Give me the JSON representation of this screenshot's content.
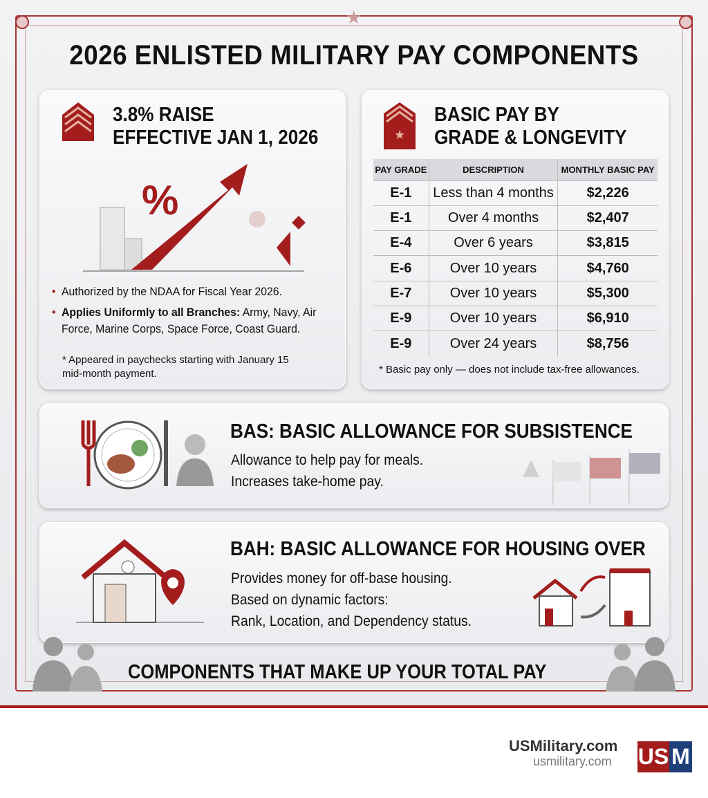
{
  "title": "2026 ENLISTED MILITARY PAY COMPONENTS",
  "raise": {
    "heading_line1": "3.8% RAISE",
    "heading_line2": "EFFECTIVE JAN 1, 2026",
    "bullets": [
      {
        "bold": "",
        "text": "Authorized by the NDAA for Fiscal Year 2026."
      },
      {
        "bold": "Applies Uniformly to all Branches:",
        "text": " Army, Navy, Air Force, Marine Corps, Space Force, Coast Guard."
      }
    ],
    "note": "* Appeared in paychecks starting with January 15 mid-month payment."
  },
  "basic_pay": {
    "heading_line1": "BASIC PAY BY",
    "heading_line2": "GRADE & LONGEVITY",
    "columns": [
      "PAY GRADE",
      "DESCRIPTION",
      "MONTHLY BASIC PAY"
    ],
    "rows": [
      [
        "E-1",
        "Less than 4 months",
        "$2,226"
      ],
      [
        "E-1",
        "Over 4 months",
        "$2,407"
      ],
      [
        "E-4",
        "Over 6 years",
        "$3,815"
      ],
      [
        "E-6",
        "Over 10 years",
        "$4,760"
      ],
      [
        "E-7",
        "Over 10 years",
        "$5,300"
      ],
      [
        "E-9",
        "Over 10 years",
        "$6,910"
      ],
      [
        "E-9",
        "Over 24 years",
        "$8,756"
      ]
    ],
    "note": "* Basic pay only — does not include tax-free allowances."
  },
  "bas": {
    "heading": "BAS: BASIC ALLOWANCE FOR SUBSISTENCE",
    "line1": "Allowance to help pay for meals.",
    "line2": "Increases take-home pay."
  },
  "bah": {
    "heading": "BAH: BASIC ALLOWANCE FOR HOUSING OVER",
    "line1": "Provides money for off-base housing.",
    "line2": "Based on dynamic factors:",
    "line3": "Rank, Location, and Dependency status."
  },
  "bottom": "COMPONENTS THAT MAKE UP YOUR TOTAL PAY",
  "footer": {
    "brand": "USMilitary.com",
    "url": "usmilitary.com",
    "logo_left": "US",
    "logo_right": "M"
  },
  "colors": {
    "accent": "#a31d1d",
    "logo_blue": "#1f3f7a"
  }
}
